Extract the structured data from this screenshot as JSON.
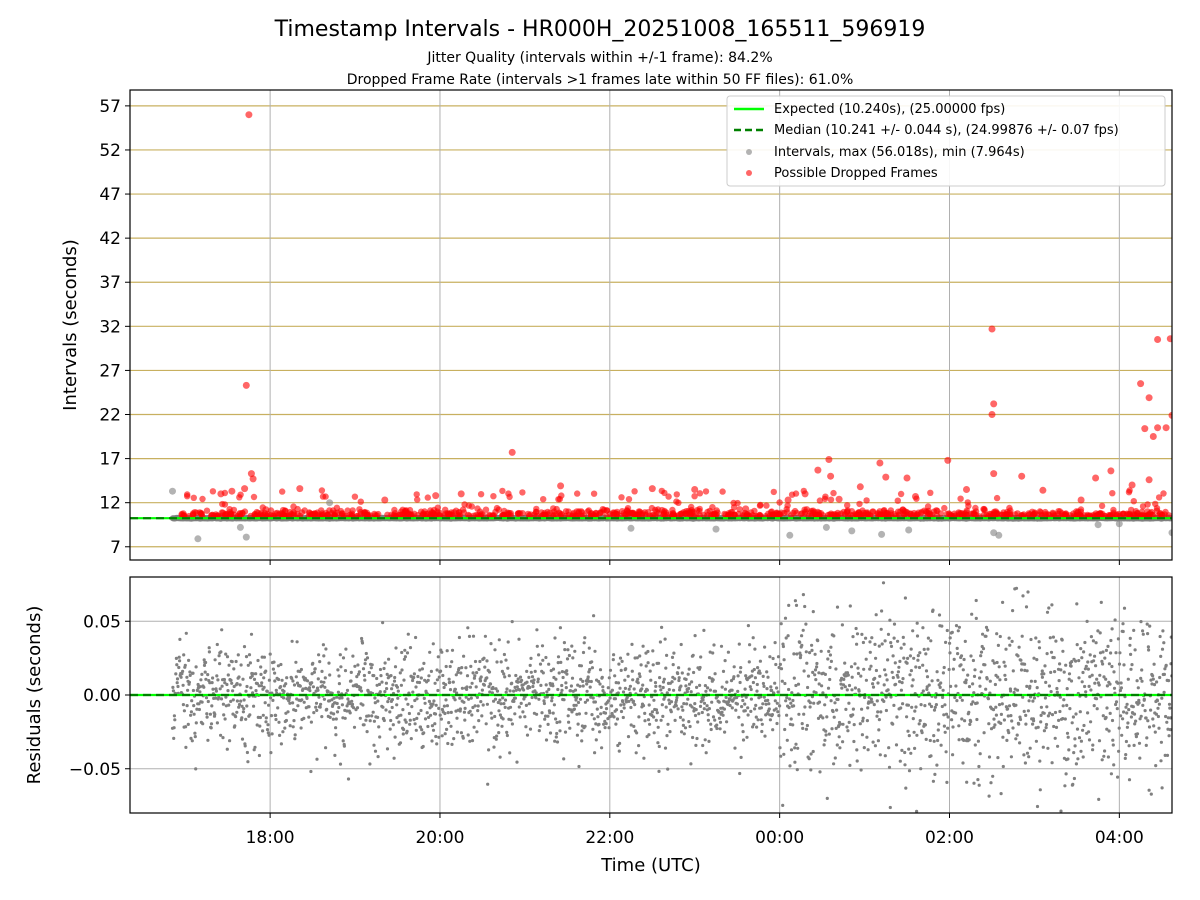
{
  "figure": {
    "title": "Timestamp Intervals - HR000H_20251008_165511_596919",
    "subtitle_1": "Jitter Quality (intervals within +/-1 frame): 84.2%",
    "subtitle_2": "Dropped Frame Rate (intervals >1 frames late within 50 FF files): 61.0%"
  },
  "colors": {
    "expected": "#00ff00",
    "median": "#008000",
    "intervals": "#808080",
    "dropped": "#ff0000",
    "hgrid_top": "#c8b060",
    "grid": "#b0b0b0"
  },
  "chart_data": [
    {
      "type": "scatter",
      "name": "intervals-panel",
      "title": "Timestamp Intervals - HR000H_20251008_165511_596919",
      "xlabel": "",
      "ylabel": "Intervals (seconds)",
      "xlim_hours": [
        16.35,
        28.62
      ],
      "ylim": [
        5.5,
        58.8
      ],
      "yticks": [
        7,
        12,
        17,
        22,
        27,
        32,
        37,
        42,
        47,
        52,
        57
      ],
      "ytick_labels": [
        "7",
        "12",
        "17",
        "22",
        "27",
        "32",
        "37",
        "42",
        "47",
        "52",
        "57"
      ],
      "xticks_hours": [
        18,
        20,
        22,
        24,
        26,
        28
      ],
      "grid": true,
      "legend_position": "top-right",
      "legend": [
        {
          "label": "Expected (10.240s), (25.00000 fps)",
          "kind": "solid-line",
          "color": "#00ff00"
        },
        {
          "label": "Median (10.241 +/- 0.044 s), (24.99876 +/- 0.07 fps)",
          "kind": "dashed-line",
          "color": "#008000"
        },
        {
          "label": "Intervals, max (56.018s), min (7.964s)",
          "kind": "marker",
          "color": "#808080"
        },
        {
          "label": "Possible Dropped Frames",
          "kind": "marker",
          "color": "#ff0000"
        }
      ],
      "expected": 10.24,
      "median": 10.241,
      "dropped_points": [
        [
          17.75,
          56.0
        ],
        [
          17.72,
          25.3
        ],
        [
          17.78,
          15.3
        ],
        [
          17.8,
          14.7
        ],
        [
          17.7,
          13.6
        ],
        [
          17.42,
          13.0
        ],
        [
          17.55,
          13.3
        ],
        [
          17.95,
          11.2
        ],
        [
          20.85,
          17.7
        ],
        [
          21.42,
          13.9
        ],
        [
          24.45,
          15.7
        ],
        [
          24.58,
          16.9
        ],
        [
          24.6,
          15.0
        ],
        [
          25.18,
          16.5
        ],
        [
          25.25,
          14.9
        ],
        [
          25.5,
          14.8
        ],
        [
          25.98,
          16.8
        ],
        [
          26.5,
          31.7
        ],
        [
          26.52,
          23.2
        ],
        [
          26.5,
          22.0
        ],
        [
          26.52,
          15.3
        ],
        [
          26.85,
          15.0
        ],
        [
          27.72,
          14.8
        ],
        [
          27.9,
          15.6
        ],
        [
          28.25,
          25.5
        ],
        [
          28.45,
          30.5
        ],
        [
          28.6,
          30.6
        ],
        [
          28.35,
          23.9
        ],
        [
          28.3,
          20.4
        ],
        [
          28.45,
          20.5
        ],
        [
          28.55,
          20.5
        ],
        [
          28.62,
          21.9
        ],
        [
          28.4,
          19.5
        ],
        [
          28.35,
          14.6
        ],
        [
          28.15,
          14.0
        ],
        [
          18.35,
          13.6
        ],
        [
          19.35,
          12.3
        ],
        [
          19.95,
          12.8
        ],
        [
          20.25,
          13.0
        ],
        [
          22.5,
          13.6
        ],
        [
          23.0,
          13.5
        ],
        [
          23.6,
          11.3
        ],
        [
          24.1,
          12.3
        ],
        [
          24.3,
          13.0
        ],
        [
          24.7,
          12.4
        ],
        [
          24.95,
          13.8
        ],
        [
          25.6,
          12.7
        ],
        [
          26.2,
          13.5
        ],
        [
          27.1,
          13.4
        ],
        [
          27.55,
          12.3
        ]
      ],
      "gray_outliers": [
        [
          16.85,
          13.3
        ],
        [
          17.15,
          7.9
        ],
        [
          17.65,
          9.2
        ],
        [
          17.72,
          8.1
        ],
        [
          18.7,
          12.0
        ],
        [
          22.25,
          9.1
        ],
        [
          23.25,
          9.0
        ],
        [
          24.12,
          8.3
        ],
        [
          24.55,
          9.2
        ],
        [
          24.85,
          8.8
        ],
        [
          25.2,
          8.4
        ],
        [
          25.52,
          8.9
        ],
        [
          26.52,
          8.6
        ],
        [
          26.58,
          8.3
        ],
        [
          27.75,
          9.5
        ],
        [
          28.0,
          9.6
        ],
        [
          28.62,
          8.6
        ]
      ]
    },
    {
      "type": "scatter",
      "name": "residuals-panel",
      "xlabel": "Time (UTC)",
      "ylabel": "Residuals (seconds)",
      "xlim_hours": [
        16.35,
        28.62
      ],
      "ylim": [
        -0.08,
        0.08
      ],
      "yticks": [
        -0.05,
        0.0,
        0.05
      ],
      "ytick_labels": [
        "−0.05",
        "0.00",
        "0.05"
      ],
      "xticks_hours": [
        18,
        20,
        22,
        24,
        26,
        28
      ],
      "xtick_labels": [
        "18:00",
        "20:00",
        "22:00",
        "00:00",
        "02:00",
        "04:00"
      ],
      "grid": true,
      "expected": 0.0,
      "median": 0.0,
      "residual_sd_before_midnight": 0.018,
      "residual_sd_after_midnight": 0.028,
      "start_hours": 16.85
    }
  ]
}
